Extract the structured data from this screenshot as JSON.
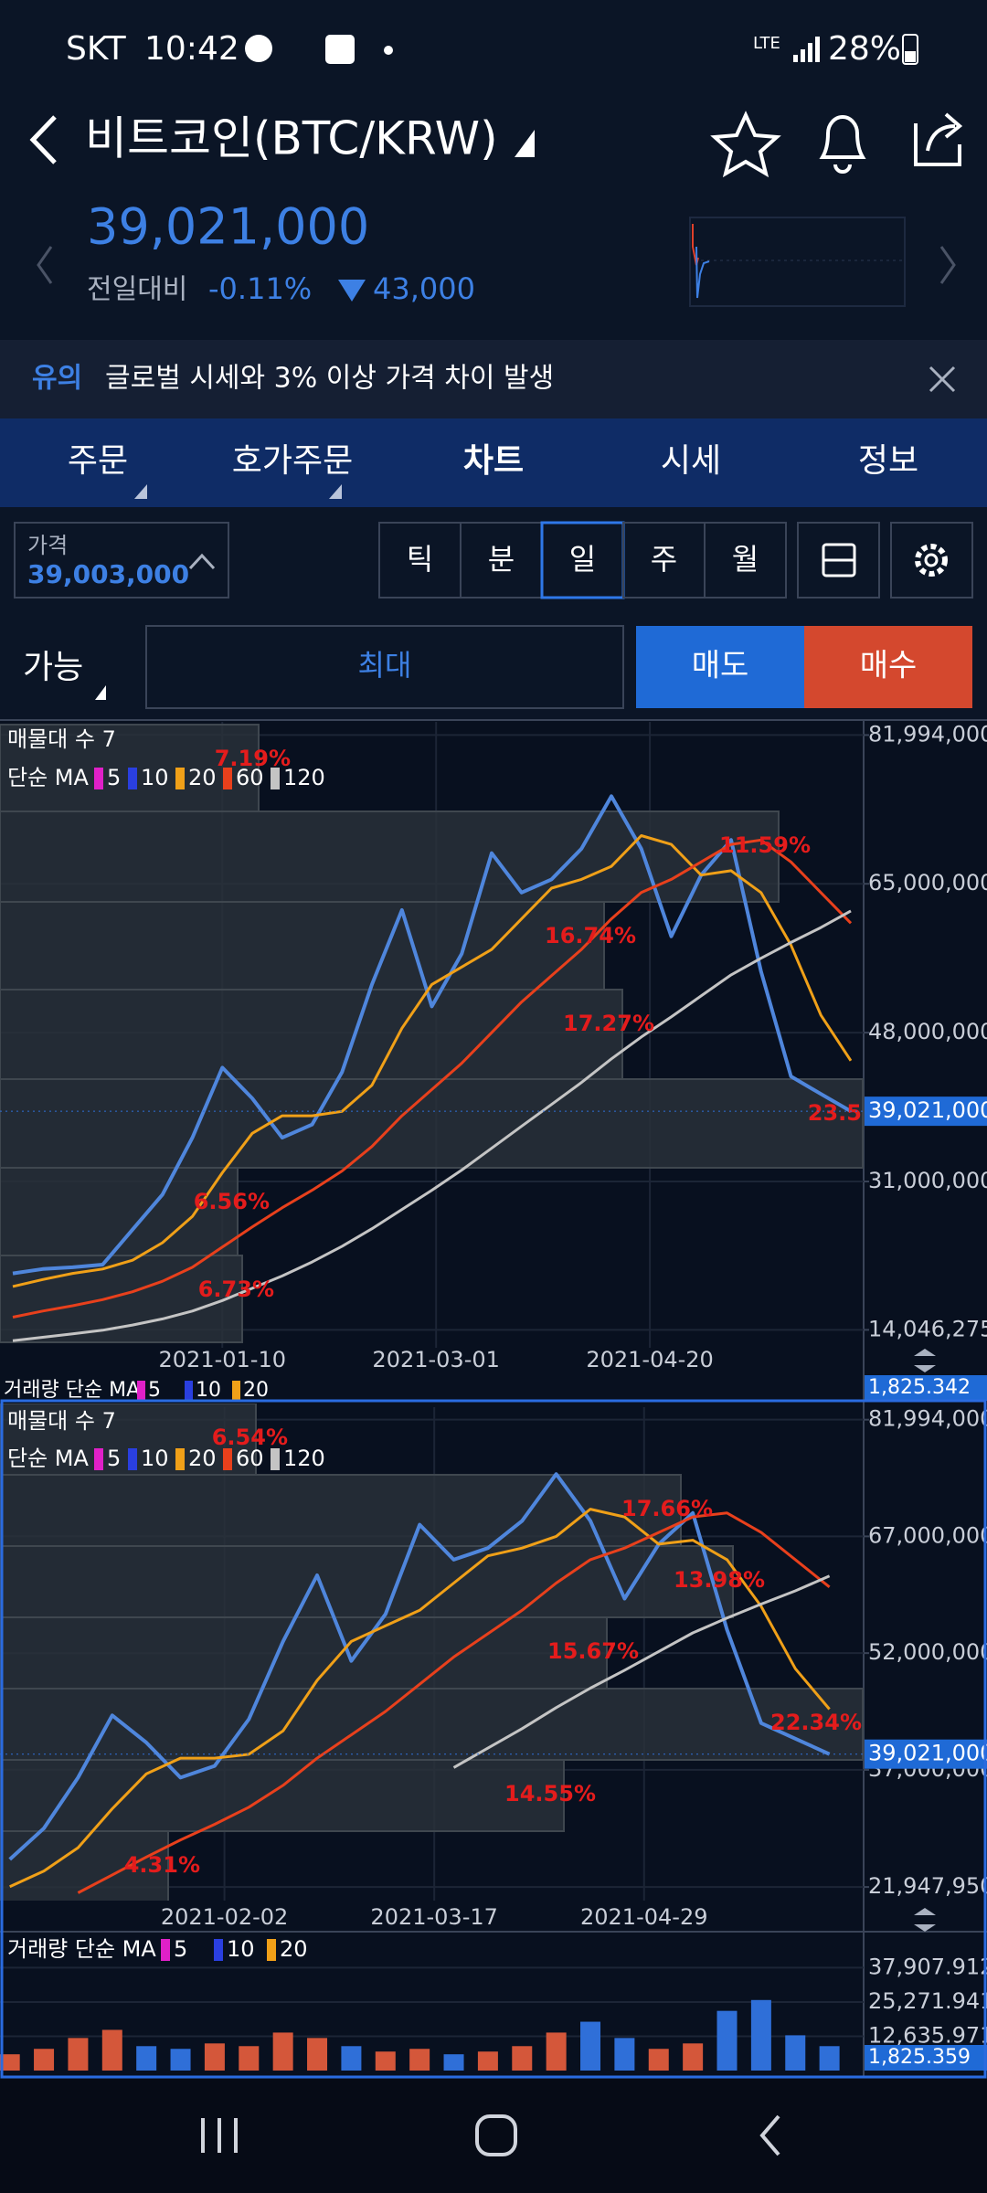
{
  "status_bar": {
    "carrier": "SKT",
    "time": "10:42",
    "network": "LTE",
    "battery": "28%"
  },
  "header": {
    "title": "비트코인(BTC/KRW)",
    "price": "39,021,000",
    "change_label": "전일대비",
    "change_pct": "-0.11%",
    "change_abs": "43,000"
  },
  "notice": {
    "tag": "유의",
    "text": "글로벌 시세와 3% 이상 가격 차이 발생"
  },
  "tabs": [
    "주문",
    "호가주문",
    "차트",
    "시세",
    "정보"
  ],
  "controls": {
    "price_label": "가격",
    "price": "39,003,000",
    "periods": [
      "틱",
      "분",
      "일",
      "주",
      "월"
    ],
    "available": "가능",
    "max": "최대",
    "sell": "매도",
    "buy": "매수"
  },
  "charts": [
    {
      "type": "line",
      "title": "매물대 수 7",
      "ma_label": "단순 MA",
      "legend": [
        {
          "name": "5",
          "color": "#e020c8"
        },
        {
          "name": "10",
          "color": "#2a3fe0"
        },
        {
          "name": "20",
          "color": "#f0a018"
        },
        {
          "name": "60",
          "color": "#e8401c"
        },
        {
          "name": "120",
          "color": "#c4c4c4"
        }
      ],
      "profile": [
        "7.19%",
        "11.59%",
        "16.74%",
        "17.27%",
        "23.5",
        "6.56%",
        "6.73%"
      ],
      "x": [
        "2020-11-22",
        "2020-11-29",
        "2020-12-06",
        "2020-12-13",
        "2020-12-20",
        "2020-12-27",
        "2021-01-03",
        "2021-01-10",
        "2021-01-17",
        "2021-01-24",
        "2021-01-31",
        "2021-02-07",
        "2021-02-14",
        "2021-02-21",
        "2021-02-28",
        "2021-03-07",
        "2021-03-14",
        "2021-03-21",
        "2021-03-28",
        "2021-04-04",
        "2021-04-11",
        "2021-04-18",
        "2021-04-25",
        "2021-05-02",
        "2021-05-09",
        "2021-05-16",
        "2021-05-23",
        "2021-05-30",
        "2021-06-06"
      ],
      "xlim": [
        "2020-11-19",
        "2021-06-09"
      ],
      "xticks": [
        "2021-01-10",
        "2021-03-01",
        "2021-04-20"
      ],
      "ylim": [
        12000000,
        83500000
      ],
      "yticks": [
        {
          "value": 81994000,
          "label": "81,994,000"
        },
        {
          "value": 65000000,
          "label": "65,000,000"
        },
        {
          "value": 48000000,
          "label": "48,000,000"
        },
        {
          "value": 31000000,
          "label": "31,000,000"
        },
        {
          "value": 14046275,
          "label": "14,046,275"
        }
      ],
      "current": {
        "value": 39021000,
        "label": "39,021,000"
      },
      "series": [
        {
          "color": "#4f86dc",
          "values": [
            20500000,
            21000000,
            21200000,
            21500000,
            25500000,
            29500000,
            36000000,
            44000000,
            40500000,
            36000000,
            37500000,
            43500000,
            53500000,
            62000000,
            51000000,
            57000000,
            68500000,
            64000000,
            65500000,
            69000000,
            75000000,
            69000000,
            59000000,
            66000000,
            70000000,
            55000000,
            43000000,
            41000000,
            39021000
          ]
        },
        {
          "color": "#f0a018",
          "values": [
            19000000,
            19800000,
            20500000,
            21000000,
            22000000,
            24000000,
            27000000,
            32000000,
            36500000,
            38500000,
            38500000,
            39000000,
            42000000,
            48500000,
            53500000,
            55500000,
            57500000,
            61000000,
            64500000,
            65500000,
            67000000,
            70500000,
            69500000,
            66000000,
            66500000,
            64000000,
            58000000,
            50000000,
            44800000
          ]
        },
        {
          "color": "#e8401c",
          "values": [
            15500000,
            16200000,
            16800000,
            17500000,
            18400000,
            19600000,
            21200000,
            23500000,
            25800000,
            28000000,
            30000000,
            32200000,
            35000000,
            38500000,
            41500000,
            44500000,
            48000000,
            51500000,
            54500000,
            57500000,
            61000000,
            64000000,
            65500000,
            67500000,
            69500000,
            70000000,
            67500000,
            64000000,
            60500000
          ]
        },
        {
          "color": "#c4c4c4",
          "values": [
            12800000,
            13200000,
            13600000,
            14000000,
            14600000,
            15300000,
            16200000,
            17400000,
            18800000,
            20200000,
            21800000,
            23600000,
            25600000,
            27800000,
            30000000,
            32300000,
            34800000,
            37300000,
            39800000,
            42300000,
            45000000,
            47500000,
            49800000,
            52200000,
            54600000,
            56500000,
            58300000,
            60000000,
            61900000
          ]
        }
      ],
      "volume": {
        "title": "거래량 단순 MA",
        "legend": [
          "5",
          "10",
          "20"
        ],
        "current": "1,825.342"
      }
    },
    {
      "type": "line",
      "title": "매물대 수 7",
      "ma_label": "단순 MA",
      "legend": [
        {
          "name": "5",
          "color": "#e020c8"
        },
        {
          "name": "10",
          "color": "#2a3fe0"
        },
        {
          "name": "20",
          "color": "#f0a018"
        },
        {
          "name": "60",
          "color": "#e8401c"
        },
        {
          "name": "120",
          "color": "#c4c4c4"
        }
      ],
      "profile": [
        "6.54%",
        "17.66%",
        "13.98%",
        "15.67%",
        "22.34%",
        "14.55%",
        "4.31%"
      ],
      "x": [
        "2020-12-20",
        "2020-12-27",
        "2021-01-03",
        "2021-01-10",
        "2021-01-17",
        "2021-01-24",
        "2021-01-31",
        "2021-02-07",
        "2021-02-14",
        "2021-02-21",
        "2021-02-28",
        "2021-03-07",
        "2021-03-14",
        "2021-03-21",
        "2021-03-28",
        "2021-04-04",
        "2021-04-11",
        "2021-04-18",
        "2021-04-25",
        "2021-05-02",
        "2021-05-09",
        "2021-05-16",
        "2021-05-23",
        "2021-05-30",
        "2021-06-06"
      ],
      "xlim": [
        "2020-12-18",
        "2021-06-13"
      ],
      "xticks": [
        "2021-02-02",
        "2021-03-17",
        "2021-04-29"
      ],
      "ylim": [
        20200000,
        83600000
      ],
      "yticks": [
        {
          "value": 81994000,
          "label": "81,994,000"
        },
        {
          "value": 67000000,
          "label": "67,000,000"
        },
        {
          "value": 52000000,
          "label": "52,000,000"
        },
        {
          "value": 37000000,
          "label": "37,000,000"
        },
        {
          "value": 21947950,
          "label": "21,947,950"
        }
      ],
      "current": {
        "value": 39021000,
        "label": "39,021,000"
      },
      "series": [
        {
          "color": "#4f86dc",
          "values": [
            25500000,
            29500000,
            36000000,
            44000000,
            40500000,
            36000000,
            37500000,
            43500000,
            53500000,
            62000000,
            51000000,
            57000000,
            68500000,
            64000000,
            65500000,
            69000000,
            75000000,
            69000000,
            59000000,
            66000000,
            70000000,
            55000000,
            43000000,
            41000000,
            39021000
          ]
        },
        {
          "color": "#f0a018",
          "values": [
            22000000,
            24000000,
            27000000,
            32000000,
            36500000,
            38500000,
            38500000,
            39000000,
            42000000,
            48500000,
            53500000,
            55500000,
            57500000,
            61000000,
            64500000,
            65500000,
            67000000,
            70500000,
            69500000,
            66000000,
            66500000,
            64000000,
            58000000,
            50000000,
            44800000
          ]
        },
        {
          "color": "#e8401c",
          "values": [
            null,
            null,
            21200000,
            23500000,
            25800000,
            28000000,
            30000000,
            32200000,
            35000000,
            38500000,
            41500000,
            44500000,
            48000000,
            51500000,
            54500000,
            57500000,
            61000000,
            64000000,
            65500000,
            67500000,
            69500000,
            70000000,
            67500000,
            64000000,
            60500000
          ]
        },
        {
          "color": "#c4c4c4",
          "values": [
            null,
            null,
            null,
            null,
            null,
            null,
            null,
            null,
            null,
            null,
            null,
            null,
            null,
            37300000,
            39800000,
            42300000,
            45000000,
            47500000,
            49800000,
            52200000,
            54600000,
            56500000,
            58300000,
            60000000,
            61900000
          ]
        }
      ],
      "volume": {
        "title": "거래량 단순 MA",
        "legend": [
          "5",
          "10",
          "20"
        ],
        "up_color": "#d4573a",
        "down_color": "#2f6fd8",
        "ylim": [
          0,
          49500
        ],
        "yticks": [
          {
            "value": 37907.912,
            "label": "37,907.912"
          },
          {
            "value": 25271.941,
            "label": "25,271.941"
          },
          {
            "value": 12635.971,
            "label": "12,635.971"
          }
        ],
        "current": {
          "value": 1825.359,
          "label": "1,825.359"
        },
        "values": [
          6000,
          8000,
          12000,
          15000,
          9000,
          8000,
          10000,
          9000,
          14000,
          12000,
          9000,
          7000,
          8000,
          6000,
          7000,
          9000,
          14000,
          18000,
          12000,
          8000,
          10000,
          22000,
          26000,
          13000,
          9000
        ]
      }
    }
  ]
}
